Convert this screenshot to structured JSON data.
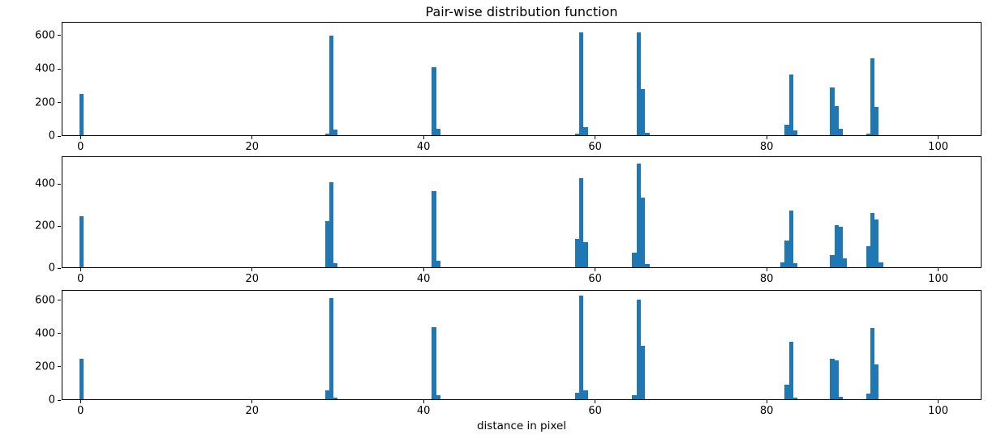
{
  "title": "Pair-wise distribution function",
  "xlabel": "distance in pixel",
  "accent_color": "#1f77b4",
  "chart_data": [
    {
      "type": "bar",
      "name": "histogram-top",
      "xlim": [
        -2.2,
        105.05
      ],
      "ylim": [
        0,
        682
      ],
      "xticks": [
        0,
        20,
        40,
        60,
        80,
        100
      ],
      "yticks": [
        0,
        200,
        400,
        600
      ],
      "bar_width": 0.5,
      "bars": [
        [
          0,
          248
        ],
        [
          28.7,
          10
        ],
        [
          29.2,
          605
        ],
        [
          29.7,
          35
        ],
        [
          41.2,
          412
        ],
        [
          41.7,
          40
        ],
        [
          57.9,
          12
        ],
        [
          58.4,
          622
        ],
        [
          58.9,
          50
        ],
        [
          65.1,
          625
        ],
        [
          65.6,
          280
        ],
        [
          66.1,
          15
        ],
        [
          82.4,
          62
        ],
        [
          82.9,
          366
        ],
        [
          83.4,
          30
        ],
        [
          87.7,
          290
        ],
        [
          88.2,
          175
        ],
        [
          88.7,
          40
        ],
        [
          91.9,
          12
        ],
        [
          92.4,
          464
        ],
        [
          92.9,
          172
        ]
      ]
    },
    {
      "type": "bar",
      "name": "histogram-middle",
      "xlim": [
        -2.2,
        105.05
      ],
      "ylim": [
        0,
        533
      ],
      "xticks": [
        0,
        20,
        40,
        60,
        80,
        100
      ],
      "yticks": [
        0,
        200,
        400
      ],
      "bar_width": 0.5,
      "bars": [
        [
          0,
          248
        ],
        [
          28.7,
          224
        ],
        [
          29.2,
          413
        ],
        [
          29.7,
          20
        ],
        [
          41.2,
          370
        ],
        [
          41.7,
          30
        ],
        [
          57.9,
          139
        ],
        [
          58.4,
          433
        ],
        [
          58.9,
          120
        ],
        [
          64.6,
          70
        ],
        [
          65.1,
          502
        ],
        [
          65.6,
          336
        ],
        [
          66.1,
          15
        ],
        [
          81.9,
          25
        ],
        [
          82.4,
          131
        ],
        [
          82.9,
          274
        ],
        [
          83.4,
          18
        ],
        [
          87.7,
          58
        ],
        [
          88.2,
          205
        ],
        [
          88.7,
          195
        ],
        [
          89.2,
          45
        ],
        [
          91.9,
          100
        ],
        [
          92.4,
          262
        ],
        [
          92.9,
          232
        ],
        [
          93.4,
          25
        ]
      ]
    },
    {
      "type": "bar",
      "name": "histogram-bottom",
      "xlim": [
        -2.2,
        105.05
      ],
      "ylim": [
        0,
        663
      ],
      "xticks": [
        0,
        20,
        40,
        60,
        80,
        100
      ],
      "yticks": [
        0,
        200,
        400,
        600
      ],
      "bar_width": 0.5,
      "bars": [
        [
          0,
          248
        ],
        [
          28.7,
          55
        ],
        [
          29.2,
          620
        ],
        [
          29.7,
          10
        ],
        [
          41.2,
          440
        ],
        [
          41.7,
          25
        ],
        [
          57.9,
          40
        ],
        [
          58.4,
          635
        ],
        [
          58.9,
          55
        ],
        [
          64.6,
          25
        ],
        [
          65.1,
          608
        ],
        [
          65.6,
          325
        ],
        [
          82.4,
          88
        ],
        [
          82.9,
          352
        ],
        [
          83.4,
          12
        ],
        [
          87.7,
          248
        ],
        [
          88.2,
          240
        ],
        [
          88.7,
          15
        ],
        [
          91.9,
          35
        ],
        [
          92.4,
          437
        ],
        [
          92.9,
          215
        ]
      ]
    }
  ]
}
